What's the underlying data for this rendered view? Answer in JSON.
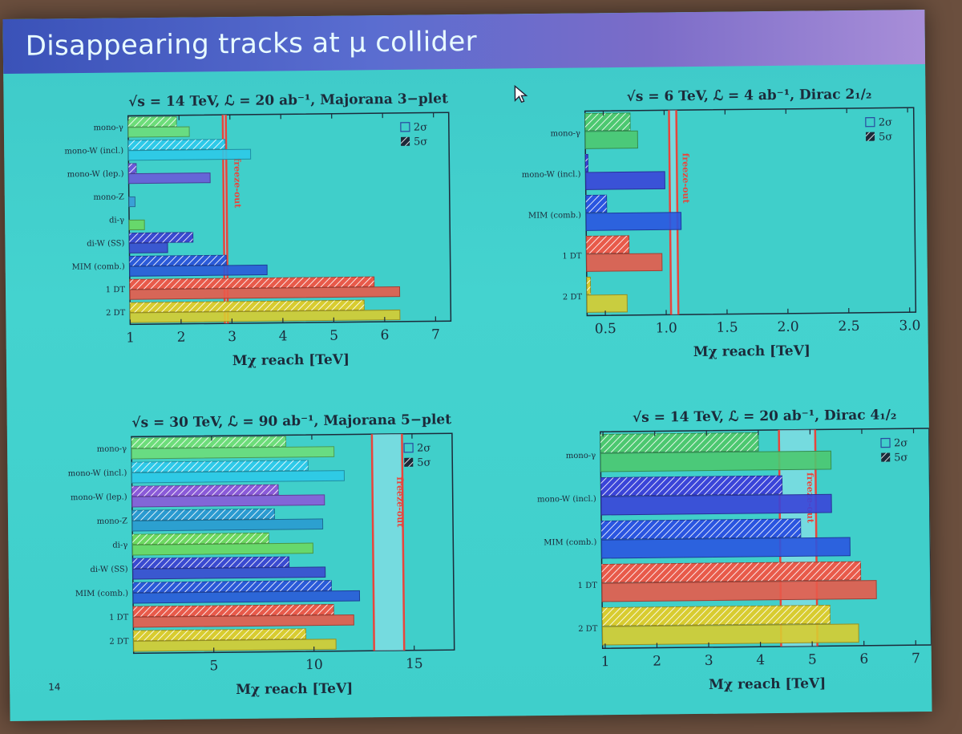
{
  "slide": {
    "title": "Disappearing tracks at μ collider",
    "page_number": "14"
  },
  "colors": {
    "plot_bg": "#40cfca",
    "freeze": "#e8453c",
    "axis": "#1c2a3a"
  },
  "chart_data": [
    {
      "type": "bar",
      "orientation": "horizontal",
      "title": "√s = 14 TeV, ℒ = 20 ab⁻¹, Majorana 3−plet",
      "xlabel": "Mχ reach [TeV]",
      "xlim": [
        1,
        7.3
      ],
      "xticks": [
        1,
        2,
        3,
        4,
        5,
        6,
        7
      ],
      "xtick_labels": [
        "1",
        "2",
        "3",
        "4",
        "5",
        "6",
        "7"
      ],
      "legend": {
        "entries": [
          "2σ",
          "5σ"
        ],
        "placement": "top-right"
      },
      "freeze_out": {
        "label": "freeze-out",
        "band": [
          2.86,
          2.92
        ]
      },
      "categories": [
        "mono-γ",
        "mono-W (incl.)",
        "mono-W (lep.)",
        "mono-Z",
        "di-γ",
        "di-W (SS)",
        "MIM (comb.)",
        "1 DT",
        "2 DT"
      ],
      "series": [
        {
          "name": "2σ",
          "values": [
            2.2,
            3.4,
            2.6,
            1.12,
            1.3,
            1.75,
            3.7,
            6.3,
            6.3
          ]
        },
        {
          "name": "5σ",
          "values": [
            1.95,
            2.9,
            1.15,
            null,
            null,
            2.25,
            2.9,
            5.8,
            5.6
          ]
        }
      ],
      "bar_colors": [
        "#6ddd7a",
        "#2ec9e8",
        "#6a5ad8",
        "#3a9ad8",
        "#6cd860",
        "#3a4ad0",
        "#2a5ad8",
        "#e85a4a",
        "#d8cc30"
      ]
    },
    {
      "type": "bar",
      "orientation": "horizontal",
      "title": "√s = 6 TeV, ℒ = 4 ab⁻¹, Dirac 2₁/₂",
      "xlabel": "Mχ reach [TeV]",
      "xlim": [
        0.35,
        3.05
      ],
      "xticks": [
        0.5,
        1.0,
        1.5,
        2.0,
        2.5,
        3.0
      ],
      "xtick_labels": [
        "0.5",
        "1.0",
        "1.5",
        "2.0",
        "2.5",
        "3.0"
      ],
      "legend": {
        "entries": [
          "2σ",
          "5σ"
        ],
        "placement": "top-right"
      },
      "freeze_out": {
        "label": "freeze-out",
        "band": [
          1.04,
          1.1
        ]
      },
      "categories": [
        "mono-γ",
        "mono-W (incl.)",
        "MIM (comb.)",
        "1 DT",
        "2 DT"
      ],
      "series": [
        {
          "name": "2σ",
          "values": [
            0.78,
            1.0,
            1.13,
            0.97,
            0.68
          ]
        },
        {
          "name": "5σ",
          "values": [
            0.72,
            0.37,
            0.52,
            0.7,
            0.38
          ]
        }
      ],
      "bar_colors": [
        "#4cc870",
        "#3a44d8",
        "#2a55e0",
        "#e85a4a",
        "#d8cc30"
      ]
    },
    {
      "type": "bar",
      "orientation": "horizontal",
      "title": "√s = 30 TeV, ℒ = 90 ab⁻¹, Majorana 5−plet",
      "xlabel": "Mχ reach [TeV]",
      "xlim": [
        1,
        17
      ],
      "xticks": [
        5,
        10,
        15
      ],
      "xtick_labels": [
        "5",
        "10",
        "15"
      ],
      "legend": {
        "entries": [
          "2σ",
          "5σ"
        ],
        "placement": "top-right"
      },
      "freeze_out": {
        "label": "freeze-out",
        "band": [
          13.0,
          14.5
        ]
      },
      "categories": [
        "mono-γ",
        "mono-W (incl.)",
        "mono-W (lep.)",
        "mono-Z",
        "di-γ",
        "di-W (SS)",
        "MIM (comb.)",
        "1 DT",
        "2 DT"
      ],
      "series": [
        {
          "name": "2σ",
          "values": [
            11.1,
            11.6,
            10.6,
            10.5,
            10.0,
            10.6,
            12.3,
            12.0,
            11.1
          ]
        },
        {
          "name": "5σ",
          "values": [
            8.7,
            9.8,
            8.3,
            8.1,
            7.8,
            8.8,
            10.9,
            11.0,
            9.6
          ]
        }
      ],
      "bar_colors": [
        "#6ddd7a",
        "#2ec9e8",
        "#8a5ad8",
        "#2a9ad0",
        "#6cd860",
        "#3a4ad0",
        "#2a5ad8",
        "#e85a4a",
        "#d8cc30"
      ]
    },
    {
      "type": "bar",
      "orientation": "horizontal",
      "title": "√s = 14 TeV, ℒ = 20 ab⁻¹, Dirac 4₁/₂",
      "xlabel": "Mχ reach [TeV]",
      "xlim": [
        0.95,
        7.3
      ],
      "xticks": [
        1,
        2,
        3,
        4,
        5,
        6,
        7
      ],
      "xtick_labels": [
        "1",
        "2",
        "3",
        "4",
        "5",
        "6",
        "7"
      ],
      "legend": {
        "entries": [
          "2σ",
          "5σ"
        ],
        "placement": "top-right"
      },
      "freeze_out": {
        "label": "freeze-out",
        "band": [
          4.4,
          5.1
        ]
      },
      "categories": [
        "mono-γ",
        "mono-W (incl.)",
        "MIM (comb.)",
        "1 DT",
        "2 DT"
      ],
      "series": [
        {
          "name": "2σ",
          "values": [
            5.4,
            5.4,
            5.75,
            6.25,
            5.9
          ]
        },
        {
          "name": "5σ",
          "values": [
            4.0,
            4.45,
            4.8,
            5.95,
            5.35
          ]
        }
      ],
      "bar_colors": [
        "#4cc870",
        "#3a44d8",
        "#2a55e0",
        "#e85a4a",
        "#d8cc30"
      ]
    }
  ]
}
